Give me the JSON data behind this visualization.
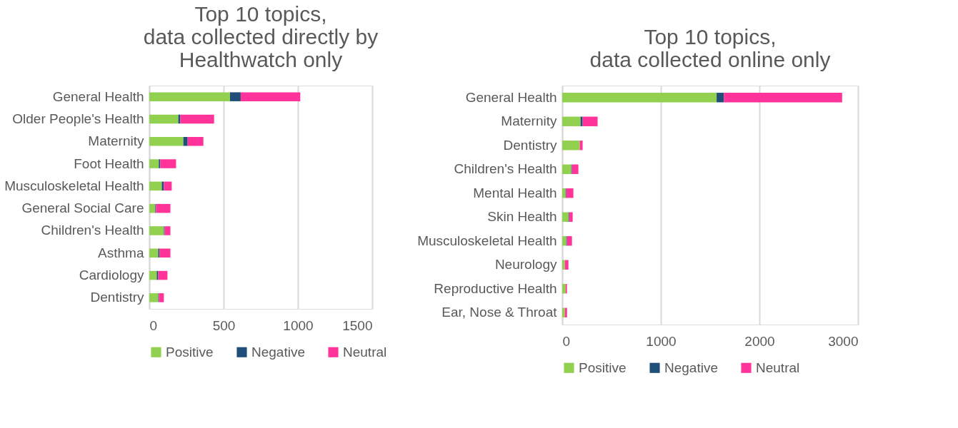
{
  "chart_data": [
    {
      "type": "bar",
      "orientation": "horizontal",
      "stacked": true,
      "title": "Top 10 topics, data collected directly by Healthwatch only",
      "categories": [
        "General Health",
        "Older People's Health",
        "Maternity",
        "Foot Health",
        "Musculoskeletal Health",
        "General Social Care",
        "Children's Health",
        "Asthma",
        "Cardiology",
        "Dentistry"
      ],
      "series": [
        {
          "name": "Positive",
          "color": "#92d050",
          "values": [
            543,
            195,
            229,
            64,
            84,
            40,
            98,
            60,
            50,
            60
          ]
        },
        {
          "name": "Negative",
          "color": "#1f4e79",
          "values": [
            72,
            14,
            29,
            10,
            14,
            5,
            5,
            9,
            10,
            4
          ]
        },
        {
          "name": "Neutral",
          "color": "#ff3399",
          "values": [
            401,
            227,
            106,
            106,
            53,
            97,
            39,
            73,
            62,
            34
          ]
        }
      ],
      "xlim": [
        0,
        1500
      ],
      "xticks": [
        0,
        500,
        1000,
        1500
      ],
      "grid": "x",
      "legend": "bottom"
    },
    {
      "type": "bar",
      "orientation": "horizontal",
      "stacked": true,
      "title": "Top 10 topics, data collected online only",
      "categories": [
        "General Health",
        "Maternity",
        "Dentistry",
        "Children's Health",
        "Mental Health",
        "Skin Health",
        "Musculoskeletal Health",
        "Neurology",
        "Reproductive Health",
        "Ear, Nose & Throat"
      ],
      "series": [
        {
          "name": "Positive",
          "color": "#92d050",
          "values": [
            1566,
            186,
            178,
            92,
            34,
            63,
            41,
            27,
            34,
            27
          ]
        },
        {
          "name": "Negative",
          "color": "#1f4e79",
          "values": [
            73,
            21,
            0,
            7,
            7,
            7,
            7,
            0,
            0,
            0
          ]
        },
        {
          "name": "Neutral",
          "color": "#ff3399",
          "values": [
            1200,
            152,
            29,
            65,
            72,
            36,
            51,
            36,
            14,
            22
          ]
        }
      ],
      "xlim": [
        0,
        3000
      ],
      "xticks": [
        0,
        1000,
        2000,
        3000
      ],
      "grid": "x",
      "legend": "bottom"
    }
  ]
}
